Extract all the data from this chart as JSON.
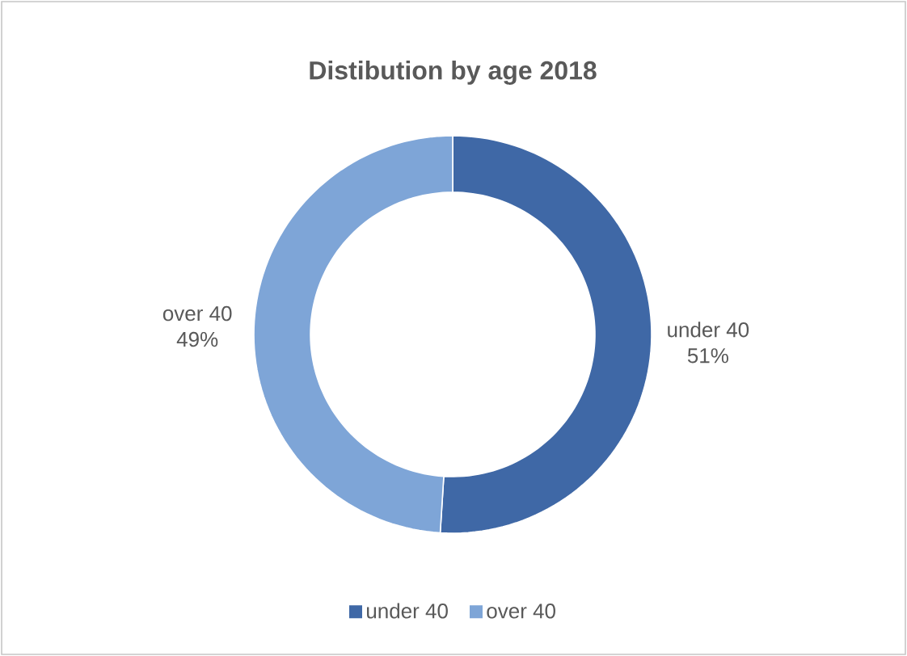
{
  "chart_data": {
    "type": "donut",
    "title": "Distibution by age 2018",
    "categories": [
      "under 40",
      "over 40"
    ],
    "values": [
      51,
      49
    ],
    "value_labels": [
      "51%",
      "49%"
    ],
    "colors": [
      "#3f68a6",
      "#7ea5d7"
    ],
    "legend": "bottom"
  }
}
